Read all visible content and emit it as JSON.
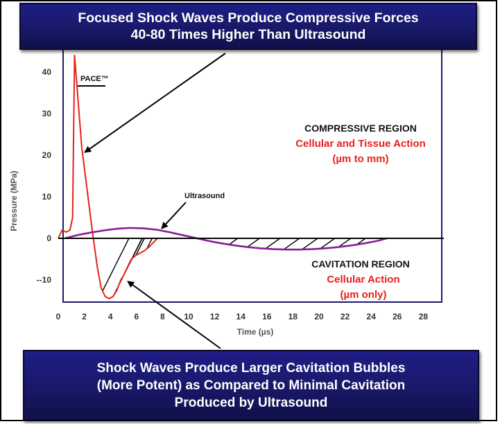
{
  "header": {
    "line1": "Focused Shock Waves Produce Compressive Forces",
    "line2": "40-80 Times Higher Than Ultrasound"
  },
  "footer": {
    "line1": "Shock Waves Produce Larger Cavitation Bubbles",
    "line2": "(More Potent) as Compared to Minimal Cavitation",
    "line3": "Produced by Ultrasound"
  },
  "colors": {
    "banner": "#1a1a6e",
    "shock_wave": "#e8201a",
    "ultrasound": "#8a1a9a",
    "annotation_red": "#e8201a",
    "plot_frame": "#1a1a6e"
  },
  "chart_data": {
    "type": "line",
    "xlabel": "Time (µs)",
    "ylabel": "Pressure (MPa)",
    "xlim": [
      0,
      29
    ],
    "ylim": [
      -15,
      46
    ],
    "x_ticks": [
      0,
      2,
      4,
      6,
      8,
      10,
      12,
      14,
      16,
      18,
      20,
      22,
      24,
      26,
      28
    ],
    "y_ticks": [
      {
        "value": 40,
        "label": "40"
      },
      {
        "value": 30,
        "label": "30"
      },
      {
        "value": 20,
        "label": "20"
      },
      {
        "value": 10,
        "label": "10"
      },
      {
        "value": 0,
        "label": "0"
      },
      {
        "value": -10,
        "label": "--10"
      }
    ],
    "series": [
      {
        "name": "PACE™",
        "color": "#e8201a",
        "x": [
          0,
          0.3,
          0.6,
          0.9,
          1.1,
          1.25,
          1.35,
          1.5,
          1.8,
          2.2,
          2.6,
          3.0,
          3.3,
          3.6,
          3.9,
          4.2,
          4.5,
          4.8,
          5.0,
          5.3,
          5.6,
          6.0,
          6.3,
          6.6,
          7.0,
          7.3,
          7.6
        ],
        "y": [
          0,
          2,
          1.5,
          2,
          5,
          44,
          40,
          34,
          22,
          12,
          2,
          -7,
          -12,
          -14,
          -14.5,
          -14,
          -12.5,
          -10,
          -9,
          -7,
          -5,
          -4,
          -3.5,
          -3,
          -2,
          -1,
          0
        ]
      },
      {
        "name": "Ultrasound",
        "color": "#8a1a9a",
        "x": [
          0.5,
          1.5,
          2.5,
          3.5,
          4.5,
          5.5,
          6.5,
          7.5,
          8.5,
          9.5,
          10.5,
          11.5,
          12.5,
          13.5,
          14.5,
          15.5,
          16.5,
          17.5,
          18.5,
          19.5,
          20.5,
          21.5,
          22.5,
          23.5,
          24.5,
          25.2
        ],
        "y": [
          0,
          0.8,
          1.4,
          1.9,
          2.3,
          2.5,
          2.4,
          2.1,
          1.5,
          0.8,
          0.1,
          -0.6,
          -1.2,
          -1.7,
          -2.1,
          -2.4,
          -2.6,
          -2.7,
          -2.7,
          -2.6,
          -2.4,
          -2.1,
          -1.7,
          -1.2,
          -0.6,
          0
        ]
      }
    ],
    "annotations": {
      "pace_label": "PACE™",
      "ultrasound_label": "Ultrasound",
      "compressive_title": "COMPRESSIVE REGION",
      "compressive_sub1": "Cellular and Tissue Action",
      "compressive_sub2": "(µm to mm)",
      "cavitation_title": "CAVITATION REGION",
      "cavitation_sub1": "Cellular Action",
      "cavitation_sub2": "(µm only)"
    },
    "grid": false,
    "legend": "none"
  }
}
